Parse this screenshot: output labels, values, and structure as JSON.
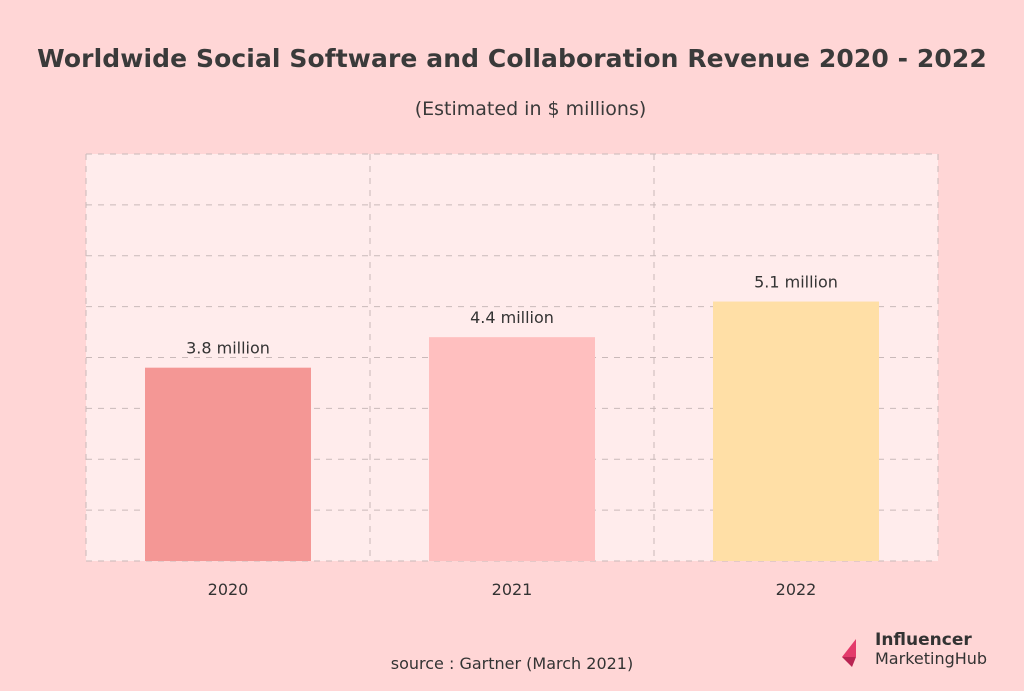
{
  "title": "Worldwide Social Software and Collaboration Revenue 2020 - 2022",
  "subtitle": "(Estimated in $ millions)",
  "source": "source : Gartner (March 2021)",
  "logo": {
    "line1": "Influencer",
    "line2": "MarketingHub"
  },
  "colors": {
    "background": "#ffd6d6",
    "plot_background": "#ffecec",
    "grid": "#c9b9b9",
    "bars": [
      "#f49795",
      "#ffbfbf",
      "#ffdfa6"
    ],
    "logo_accent": "#e33b6b"
  },
  "chart_data": {
    "type": "bar",
    "categories": [
      "2020",
      "2021",
      "2022"
    ],
    "values": [
      3.8,
      4.4,
      5.1
    ],
    "data_labels": [
      "3.8 million",
      "4.4 million",
      "5.1 million"
    ],
    "ylim": [
      0,
      8
    ],
    "grid": true,
    "xlabel": "",
    "ylabel": ""
  }
}
